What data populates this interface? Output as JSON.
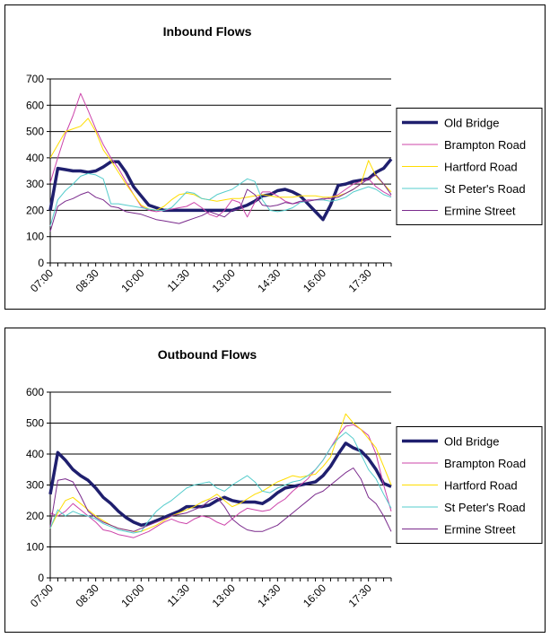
{
  "chart_data": [
    {
      "type": "line",
      "title": "Inbound Flows",
      "xlabel": "",
      "ylabel": "",
      "ylim": [
        0,
        700
      ],
      "yticks": [
        0,
        100,
        200,
        300,
        400,
        500,
        600,
        700
      ],
      "grid": true,
      "legend": "right",
      "categories": [
        "07:00",
        "07:15",
        "07:30",
        "07:45",
        "08:00",
        "08:15",
        "08:30",
        "08:45",
        "09:00",
        "09:15",
        "09:30",
        "09:45",
        "10:00",
        "10:15",
        "10:30",
        "10:45",
        "11:00",
        "11:15",
        "11:30",
        "11:45",
        "12:00",
        "12:15",
        "12:30",
        "12:45",
        "13:00",
        "13:15",
        "13:30",
        "13:45",
        "14:00",
        "14:15",
        "14:30",
        "14:45",
        "15:00",
        "15:15",
        "15:30",
        "15:45",
        "16:00",
        "16:15",
        "16:30",
        "16:45",
        "17:00",
        "17:15",
        "17:30",
        "17:45",
        "18:00",
        "18:15"
      ],
      "tick_labels": [
        "07:00",
        "08:30",
        "10:00",
        "11:30",
        "13:00",
        "14:30",
        "16:00",
        "17:30"
      ],
      "series": [
        {
          "name": "Old Bridge",
          "color": "#1f1f6e",
          "width": 3.5,
          "values": [
            200,
            360,
            355,
            350,
            350,
            345,
            350,
            365,
            385,
            385,
            345,
            290,
            255,
            220,
            210,
            200,
            200,
            200,
            200,
            200,
            200,
            200,
            200,
            200,
            200,
            210,
            220,
            235,
            255,
            260,
            275,
            280,
            270,
            255,
            225,
            195,
            165,
            220,
            295,
            300,
            310,
            315,
            320,
            345,
            360,
            395
          ]
        },
        {
          "name": "Brampton Road",
          "color": "#cc44aa",
          "width": 1,
          "values": [
            305,
            400,
            490,
            560,
            645,
            580,
            510,
            450,
            400,
            360,
            310,
            260,
            215,
            200,
            195,
            200,
            205,
            210,
            215,
            230,
            210,
            185,
            175,
            200,
            240,
            230,
            175,
            230,
            270,
            270,
            255,
            235,
            225,
            230,
            240,
            240,
            240,
            250,
            260,
            280,
            300,
            310,
            320,
            290,
            270,
            255
          ]
        },
        {
          "name": "Hartford Road",
          "color": "#ffdd00",
          "width": 1,
          "values": [
            400,
            450,
            500,
            510,
            520,
            550,
            500,
            430,
            390,
            345,
            300,
            260,
            220,
            205,
            200,
            215,
            240,
            260,
            265,
            260,
            245,
            240,
            235,
            240,
            245,
            245,
            250,
            255,
            260,
            255,
            250,
            250,
            250,
            255,
            255,
            255,
            250,
            250,
            255,
            265,
            280,
            300,
            390,
            330,
            300,
            270
          ]
        },
        {
          "name": "St Peter's Road",
          "color": "#55cccc",
          "width": 1,
          "values": [
            140,
            240,
            275,
            300,
            330,
            340,
            335,
            320,
            225,
            225,
            220,
            215,
            210,
            205,
            200,
            200,
            210,
            240,
            270,
            265,
            245,
            240,
            260,
            270,
            280,
            300,
            320,
            310,
            240,
            200,
            195,
            200,
            210,
            230,
            235,
            240,
            240,
            235,
            240,
            250,
            270,
            280,
            290,
            280,
            260,
            250
          ]
        },
        {
          "name": "Ermine Street",
          "color": "#7a2a8c",
          "width": 1,
          "values": [
            120,
            215,
            235,
            245,
            260,
            270,
            250,
            240,
            215,
            210,
            195,
            190,
            185,
            175,
            165,
            160,
            155,
            150,
            160,
            170,
            180,
            195,
            185,
            175,
            200,
            205,
            280,
            260,
            220,
            215,
            220,
            230,
            225,
            235,
            235,
            240,
            245,
            245,
            250,
            265,
            280,
            300,
            320,
            335,
            300,
            260
          ]
        }
      ]
    },
    {
      "type": "line",
      "title": "Outbound Flows",
      "xlabel": "",
      "ylabel": "",
      "ylim": [
        0,
        600
      ],
      "yticks": [
        0,
        100,
        200,
        300,
        400,
        500,
        600
      ],
      "grid": true,
      "legend": "right",
      "categories": [
        "07:00",
        "07:15",
        "07:30",
        "07:45",
        "08:00",
        "08:15",
        "08:30",
        "08:45",
        "09:00",
        "09:15",
        "09:30",
        "09:45",
        "10:00",
        "10:15",
        "10:30",
        "10:45",
        "11:00",
        "11:15",
        "11:30",
        "11:45",
        "12:00",
        "12:15",
        "12:30",
        "12:45",
        "13:00",
        "13:15",
        "13:30",
        "13:45",
        "14:00",
        "14:15",
        "14:30",
        "14:45",
        "15:00",
        "15:15",
        "15:30",
        "15:45",
        "16:00",
        "16:15",
        "16:30",
        "16:45",
        "17:00",
        "17:15",
        "17:30",
        "17:45",
        "18:00",
        "18:15"
      ],
      "tick_labels": [
        "07:00",
        "08:30",
        "10:00",
        "11:30",
        "13:00",
        "14:30",
        "16:00",
        "17:30"
      ],
      "series": [
        {
          "name": "Old Bridge",
          "color": "#1f1f6e",
          "width": 3.5,
          "values": [
            270,
            405,
            380,
            350,
            330,
            315,
            290,
            260,
            240,
            215,
            195,
            180,
            170,
            175,
            185,
            195,
            205,
            215,
            230,
            230,
            230,
            235,
            250,
            260,
            250,
            245,
            245,
            245,
            240,
            255,
            275,
            290,
            295,
            300,
            305,
            310,
            330,
            360,
            400,
            435,
            420,
            410,
            385,
            350,
            305,
            295
          ]
        },
        {
          "name": "Brampton Road",
          "color": "#cc44aa",
          "width": 1,
          "values": [
            210,
            200,
            215,
            240,
            220,
            200,
            180,
            155,
            150,
            140,
            135,
            130,
            140,
            150,
            165,
            180,
            190,
            180,
            175,
            190,
            200,
            195,
            180,
            170,
            190,
            210,
            225,
            220,
            215,
            220,
            240,
            255,
            280,
            300,
            320,
            350,
            380,
            420,
            460,
            490,
            495,
            480,
            460,
            400,
            300,
            215
          ]
        },
        {
          "name": "Hartford Road",
          "color": "#ffdd00",
          "width": 1,
          "values": [
            160,
            210,
            250,
            260,
            240,
            220,
            200,
            185,
            170,
            160,
            155,
            150,
            150,
            160,
            170,
            185,
            200,
            210,
            220,
            230,
            245,
            255,
            270,
            250,
            230,
            240,
            255,
            270,
            280,
            295,
            310,
            320,
            330,
            325,
            330,
            335,
            360,
            390,
            460,
            530,
            500,
            480,
            450,
            420,
            360,
            300
          ]
        },
        {
          "name": "St Peter's Road",
          "color": "#55cccc",
          "width": 1,
          "values": [
            160,
            220,
            200,
            215,
            205,
            200,
            190,
            175,
            165,
            155,
            150,
            145,
            150,
            185,
            215,
            235,
            250,
            270,
            290,
            300,
            305,
            310,
            290,
            280,
            300,
            315,
            330,
            310,
            280,
            275,
            290,
            300,
            310,
            315,
            330,
            350,
            380,
            420,
            450,
            470,
            450,
            400,
            350,
            320,
            270,
            225
          ]
        },
        {
          "name": "Ermine Street",
          "color": "#7a2a8c",
          "width": 1,
          "values": [
            165,
            315,
            320,
            310,
            265,
            215,
            195,
            180,
            170,
            160,
            155,
            150,
            160,
            170,
            180,
            190,
            200,
            205,
            210,
            220,
            230,
            250,
            260,
            230,
            190,
            170,
            155,
            150,
            150,
            160,
            170,
            190,
            210,
            230,
            250,
            270,
            280,
            300,
            320,
            340,
            355,
            320,
            260,
            240,
            200,
            150
          ]
        }
      ]
    }
  ]
}
